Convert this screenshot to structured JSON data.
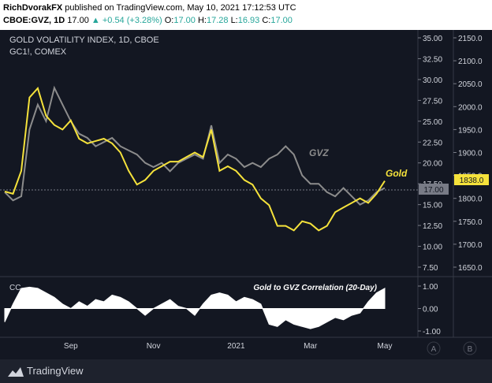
{
  "header": {
    "author": "RichDvorakFX",
    "published_text": "published on TradingView.com, May 10, 2021 17:12:53 UTC",
    "symbol": "CBOE:GVZ, 1D",
    "last": "17.00",
    "change": "+0.54 (+3.28%)",
    "ohlc": [
      {
        "label": "O:",
        "value": "17.00"
      },
      {
        "label": "H:",
        "value": "17.28"
      },
      {
        "label": "L:",
        "value": "16.93"
      },
      {
        "label": "C:",
        "value": "17.00"
      }
    ]
  },
  "panel": {
    "title": "GOLD VOLATILITY INDEX, 1D, CBOE",
    "subtitle": "GC1!, COMEX",
    "gvz_label": "GVZ",
    "gold_label": "Gold",
    "cc_label": "CC",
    "cc_title": "Gold to GVZ Correlation (20-Day)",
    "gvz_last_tag": "17.00",
    "gold_last_tag": "1838.0",
    "scale_buttons": [
      "A",
      "B"
    ]
  },
  "footer": {
    "brand": "TradingView"
  },
  "colors": {
    "background": "#131722",
    "gvz": "#8c8c8c",
    "gold": "#f5e23b",
    "correlation": "#ffffff",
    "text": "#d1d4dc"
  },
  "chart_data": {
    "type": "line",
    "x_ticks": [
      "Sep",
      "Nov",
      "2021",
      "Mar",
      "May"
    ],
    "gvz_axis": {
      "ticks": [
        "35.00",
        "32.50",
        "30.00",
        "27.50",
        "25.00",
        "22.50",
        "20.00",
        "17.50",
        "15.00",
        "12.50",
        "10.00",
        "7.50"
      ],
      "ylim": [
        7.5,
        35
      ]
    },
    "gold_axis": {
      "ticks": [
        "2150.0",
        "2100.0",
        "2050.0",
        "2000.0",
        "1950.0",
        "1900.0",
        "1850.0",
        "1800.0",
        "1750.0",
        "1700.0",
        "1650.0"
      ],
      "ylim": [
        1650,
        2150
      ]
    },
    "cc_axis": {
      "ticks": [
        "1.00",
        "0.00",
        "-1.00"
      ],
      "ylim": [
        -1,
        1
      ]
    },
    "series": [
      {
        "name": "GVZ",
        "axis": "left",
        "values": [
          16.5,
          15.5,
          16,
          24,
          27,
          25,
          29,
          27,
          25,
          23.5,
          23,
          22,
          22.5,
          23,
          22,
          21.5,
          21,
          20,
          19.5,
          20,
          19,
          20,
          20.5,
          21,
          20.5,
          24.5,
          20,
          21,
          20.5,
          19.5,
          20,
          19.5,
          20.5,
          21,
          22,
          21,
          18.5,
          17.5,
          17.5,
          16.5,
          16,
          17,
          16,
          15,
          15.5,
          16.5,
          17
        ]
      },
      {
        "name": "Gold",
        "axis": "right",
        "values": [
          1815,
          1810,
          1860,
          2020,
          2040,
          1980,
          1960,
          1950,
          1970,
          1930,
          1920,
          1925,
          1930,
          1920,
          1900,
          1860,
          1830,
          1840,
          1860,
          1870,
          1880,
          1880,
          1890,
          1900,
          1890,
          1950,
          1860,
          1870,
          1860,
          1840,
          1830,
          1800,
          1785,
          1740,
          1740,
          1730,
          1750,
          1745,
          1730,
          1740,
          1770,
          1780,
          1790,
          1800,
          1790,
          1810,
          1838
        ]
      },
      {
        "name": "CC",
        "axis": "cc",
        "values": [
          -0.6,
          0.2,
          0.9,
          0.95,
          0.9,
          0.7,
          0.5,
          0.2,
          0.0,
          0.3,
          0.1,
          0.4,
          0.3,
          0.6,
          0.5,
          0.3,
          0.0,
          -0.3,
          0.0,
          0.2,
          0.4,
          0.1,
          0.0,
          -0.3,
          0.2,
          0.6,
          0.7,
          0.6,
          0.3,
          0.5,
          0.4,
          0.2,
          -0.7,
          -0.8,
          -0.5,
          -0.7,
          -0.8,
          -0.9,
          -0.8,
          -0.6,
          -0.4,
          -0.5,
          -0.3,
          -0.2,
          0.3,
          0.7,
          0.9
        ]
      }
    ]
  }
}
